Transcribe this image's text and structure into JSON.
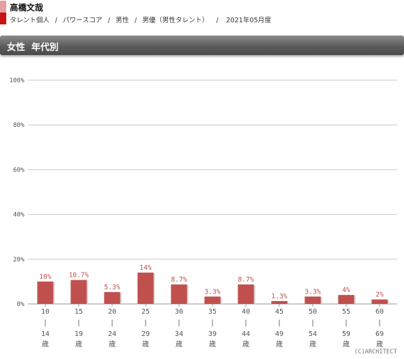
{
  "header": {
    "name": "高橋文哉",
    "crumbs": [
      "タレント個人",
      "パワースコア",
      "男性",
      "男優（男性タレント）",
      "2021年05月度"
    ],
    "separator": "/"
  },
  "section_title": "女性  年代別",
  "copyright": "(C)ARCHITECT",
  "colors": {
    "bar": "#c0504d",
    "accent": "#c81414",
    "grid": "#c8c8c8",
    "banner": "#5c5c5c"
  },
  "chart_data": {
    "type": "bar",
    "title": "",
    "xlabel": "",
    "ylabel": "",
    "ylim": [
      0,
      100
    ],
    "yticks": [
      0,
      20,
      40,
      60,
      80,
      100
    ],
    "ytick_labels": [
      "0%",
      "20%",
      "40%",
      "60%",
      "80%",
      "100%"
    ],
    "grid": true,
    "categories": [
      {
        "from": "10",
        "sep": "|",
        "to": "14",
        "unit": "歳"
      },
      {
        "from": "15",
        "sep": "|",
        "to": "19",
        "unit": "歳"
      },
      {
        "from": "20",
        "sep": "|",
        "to": "24",
        "unit": "歳"
      },
      {
        "from": "25",
        "sep": "|",
        "to": "29",
        "unit": "歳"
      },
      {
        "from": "30",
        "sep": "|",
        "to": "34",
        "unit": "歳"
      },
      {
        "from": "35",
        "sep": "|",
        "to": "39",
        "unit": "歳"
      },
      {
        "from": "40",
        "sep": "|",
        "to": "44",
        "unit": "歳"
      },
      {
        "from": "45",
        "sep": "|",
        "to": "49",
        "unit": "歳"
      },
      {
        "from": "50",
        "sep": "|",
        "to": "54",
        "unit": "歳"
      },
      {
        "from": "55",
        "sep": "|",
        "to": "59",
        "unit": "歳"
      },
      {
        "from": "60",
        "sep": "|",
        "to": "69",
        "unit": "歳"
      }
    ],
    "values": [
      10,
      10.7,
      5.3,
      14,
      8.7,
      3.3,
      8.7,
      1.3,
      3.3,
      4,
      2
    ],
    "data_labels": [
      "10%",
      "10.7%",
      "5.3%",
      "14%",
      "8.7%",
      "3.3%",
      "8.7%",
      "1.3%",
      "3.3%",
      "4%",
      "2%"
    ]
  }
}
